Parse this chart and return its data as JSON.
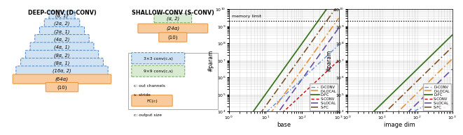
{
  "deep_conv_label": "DEEP-CONV (D-CONV)",
  "shallow_conv_label": "SHALLOW-CONV (S-CONV)",
  "d_conv_layers": [
    "(α, 1)",
    "(2α, 2)",
    "(2α, 1)",
    "(4α, 2)",
    "(4α, 1)",
    "(8α, 2)",
    "(8α, 1)",
    "(16α, 2)"
  ],
  "d_conv_fc": "(64α)",
  "d_conv_out": "(10)",
  "s_conv_layer": "(α, 2)",
  "s_conv_fc": "(24α)",
  "s_conv_out": "(10)",
  "blue_fill": "#cfe2f3",
  "blue_border": "#4a86c8",
  "green_fill": "#d9ead3",
  "green_border": "#6aa84f",
  "orange_fill": "#f9cb9c",
  "orange_border": "#e69138",
  "legend_3x3_label": "3×3 conv(c,s)",
  "legend_9x9_label": "9×9 conv(c,s)",
  "legend_fc_label": "FC(c)",
  "note_c": "c: out channels",
  "note_s": "s: stride",
  "note_fc_out": "c: output size",
  "plot1_ylabel": "#param",
  "plot1_xlabel": "base",
  "plot2_ylabel": "#param",
  "plot2_xlabel": "image dim",
  "memory_limit_label": "memory limit",
  "line_styles": {
    "D-CONV": {
      "color": "#5b8dd9",
      "ls": "-.",
      "lw": 1.0,
      "marker": ".",
      "ms": 1.5,
      "dashes": [
        4,
        2,
        1,
        2
      ]
    },
    "D-LOCAL": {
      "color": "#e69138",
      "ls": "-.",
      "lw": 1.2,
      "marker": ".",
      "ms": 2.5,
      "dashes": [
        6,
        2,
        1,
        2
      ]
    },
    "D-FC": {
      "color": "#38761d",
      "ls": "-",
      "lw": 1.3,
      "marker": null,
      "ms": 0,
      "dashes": []
    },
    "S-CONV": {
      "color": "#cc0000",
      "ls": "--",
      "lw": 1.0,
      "marker": ".",
      "ms": 1.5,
      "dashes": [
        3,
        2
      ]
    },
    "S-LOCAL": {
      "color": "#674ea7",
      "ls": "--",
      "lw": 1.2,
      "marker": ".",
      "ms": 2.0,
      "dashes": [
        6,
        3
      ]
    },
    "S-FC": {
      "color": "#7f4f28",
      "ls": "--",
      "lw": 1.2,
      "marker": ".",
      "ms": 2.5,
      "dashes": [
        6,
        2,
        1,
        2
      ]
    }
  }
}
